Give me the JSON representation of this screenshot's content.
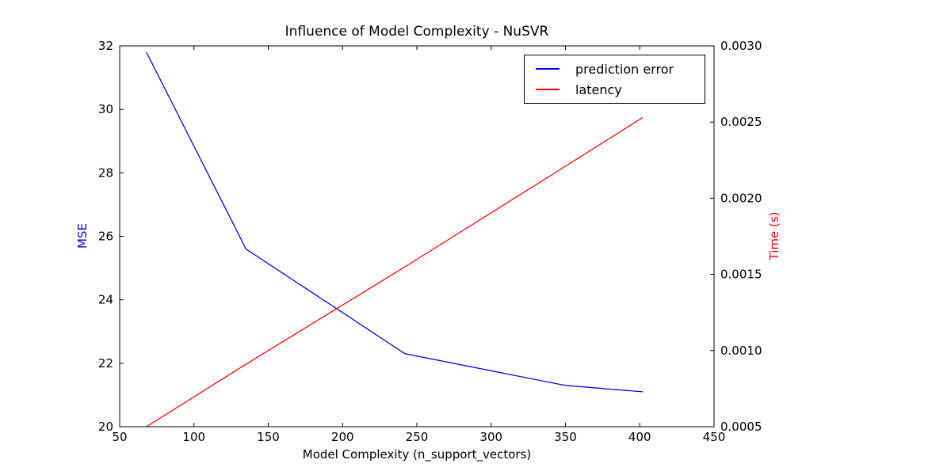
{
  "chart_data": {
    "type": "line",
    "title": "Influence of Model Complexity - NuSVR",
    "xlabel": "Model Complexity (n_support_vectors)",
    "ylabel_left": "MSE",
    "ylabel_right": "Time (s)",
    "xlim": [
      50,
      450
    ],
    "ylim_left": [
      20,
      32
    ],
    "ylim_right": [
      0.0005,
      0.003
    ],
    "xtick_labels": [
      "50",
      "100",
      "150",
      "200",
      "250",
      "300",
      "350",
      "400",
      "450"
    ],
    "ytick_labels_left": [
      "20",
      "22",
      "24",
      "26",
      "28",
      "30",
      "32"
    ],
    "ytick_labels_right": [
      "0.0005",
      "0.0010",
      "0.0015",
      "0.0020",
      "0.0025",
      "0.0030"
    ],
    "grid": false,
    "legend_position": "upper right",
    "axis_label_colors": {
      "left": "#0000ff",
      "right": "#ff0000"
    },
    "series": [
      {
        "name": "prediction error",
        "axis": "left",
        "color": "#0000ff",
        "x": [
          68,
          135,
          242,
          350,
          402
        ],
        "y": [
          31.8,
          25.6,
          22.3,
          21.3,
          21.1
        ]
      },
      {
        "name": "latency",
        "axis": "right",
        "color": "#ff0000",
        "x": [
          68,
          135,
          242,
          350,
          402
        ],
        "y": [
          0.0005,
          0.00091,
          0.00155,
          0.00221,
          0.00253
        ]
      }
    ]
  }
}
